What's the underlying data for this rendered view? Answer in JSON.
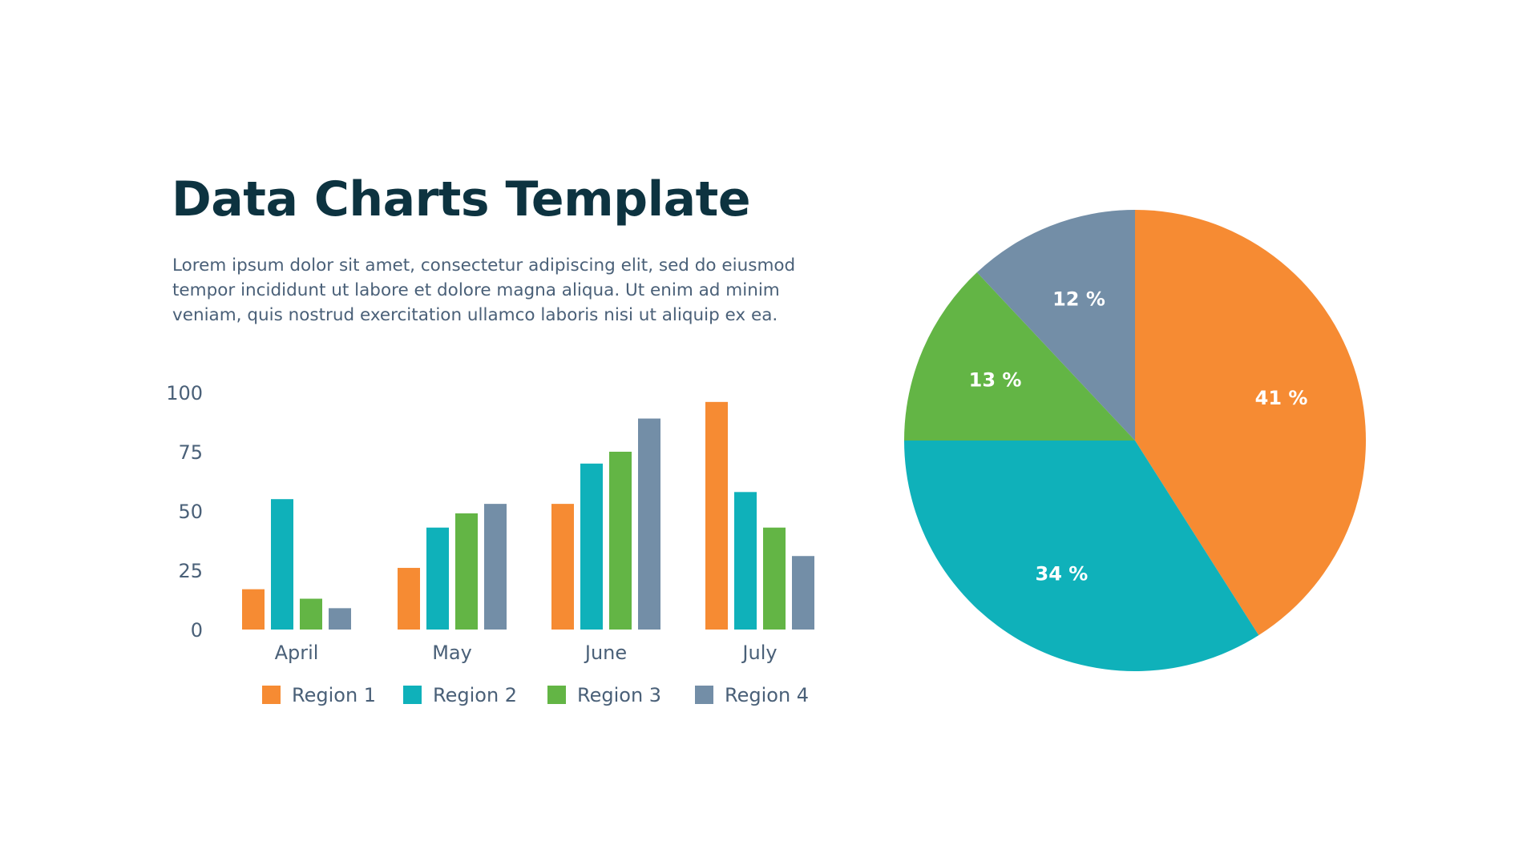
{
  "title": "Data Charts Template",
  "description": "Lorem ipsum dolor sit amet, consectetur adipiscing elit, sed do eiusmod tempor incididunt ut labore et dolore magna aliqua. Ut enim ad minim veniam, quis nostrud exercitation ullamco laboris nisi ut aliquip ex ea.",
  "chart_data": [
    {
      "type": "bar",
      "categories": [
        "April",
        "May",
        "June",
        "July"
      ],
      "series": [
        {
          "name": "Region 1",
          "color": "#F68B33",
          "values": [
            17,
            26,
            53,
            96
          ]
        },
        {
          "name": "Region 2",
          "color": "#0FB1BA",
          "values": [
            55,
            43,
            70,
            58
          ]
        },
        {
          "name": "Region 3",
          "color": "#63B545",
          "values": [
            13,
            49,
            75,
            43
          ]
        },
        {
          "name": "Region 4",
          "color": "#738EA7",
          "values": [
            9,
            53,
            89,
            31
          ]
        }
      ],
      "yticks": [
        "0",
        "25",
        "50",
        "75",
        "100"
      ],
      "ylim": [
        0,
        100
      ],
      "grid": false,
      "legend": "bottom"
    },
    {
      "type": "pie",
      "slices": [
        {
          "label": "41 %",
          "value": 41,
          "color": "#F68B33"
        },
        {
          "label": "34 %",
          "value": 34,
          "color": "#0FB1BA"
        },
        {
          "label": "13 %",
          "value": 13,
          "color": "#63B545"
        },
        {
          "label": "12 %",
          "value": 12,
          "color": "#738EA7"
        }
      ],
      "start": "top",
      "direction": "clockwise"
    }
  ]
}
